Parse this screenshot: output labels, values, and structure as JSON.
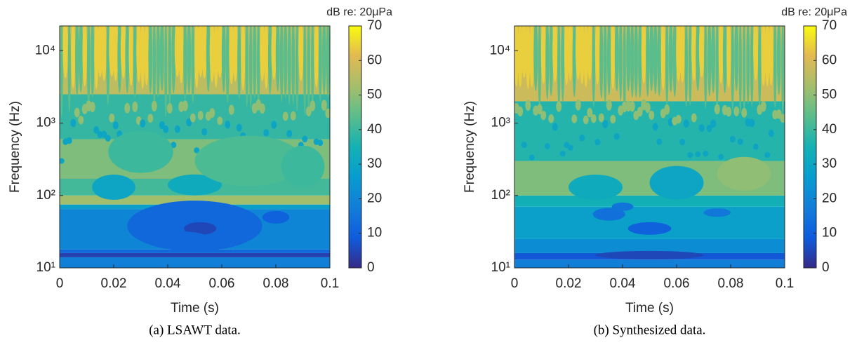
{
  "chart_data": [
    {
      "type": "heatmap",
      "caption": "(a) LSAWT data.",
      "xlabel": "Time (s)",
      "ylabel": "Frequency (Hz)",
      "colorbar_label": "dB re: 20μPa",
      "xlim": [
        0,
        0.1
      ],
      "xticks": [
        0,
        0.02,
        0.04,
        0.06,
        0.08,
        0.1
      ],
      "ylim": [
        10,
        22000
      ],
      "ylog": true,
      "yticks": [
        {
          "value": 10,
          "label": "10¹"
        },
        {
          "value": 100,
          "label": "10²"
        },
        {
          "value": 1000,
          "label": "10³"
        },
        {
          "value": 10000,
          "label": "10⁴"
        }
      ],
      "clim": [
        0,
        70
      ],
      "cticks": [
        0,
        10,
        20,
        30,
        40,
        50,
        60,
        70
      ],
      "colormap": "parula"
    },
    {
      "type": "heatmap",
      "caption": "(b) Synthesized data.",
      "xlabel": "Time (s)",
      "ylabel": "Frequency (Hz)",
      "colorbar_label": "dB re: 20μPa",
      "xlim": [
        0,
        0.1
      ],
      "xticks": [
        0,
        0.02,
        0.04,
        0.06,
        0.08,
        0.1
      ],
      "ylim": [
        10,
        22000
      ],
      "ylog": true,
      "yticks": [
        {
          "value": 10,
          "label": "10¹"
        },
        {
          "value": 100,
          "label": "10²"
        },
        {
          "value": 1000,
          "label": "10³"
        },
        {
          "value": 10000,
          "label": "10⁴"
        }
      ],
      "clim": [
        0,
        70
      ],
      "cticks": [
        0,
        10,
        20,
        30,
        40,
        50,
        60,
        70
      ],
      "colormap": "parula"
    }
  ]
}
